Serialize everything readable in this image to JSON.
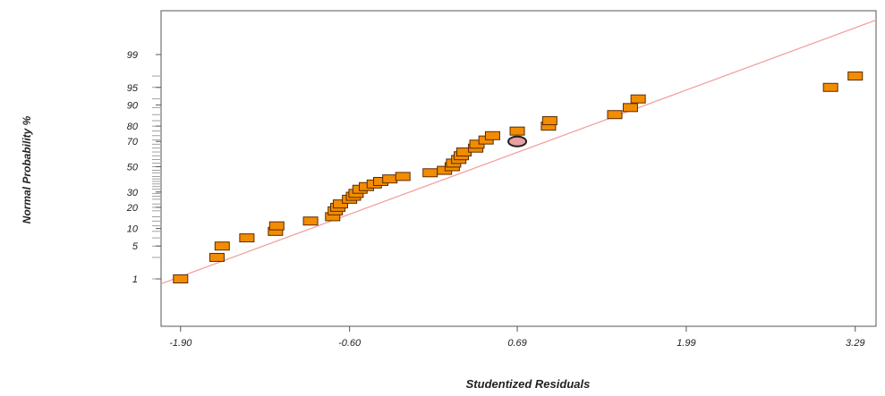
{
  "chart_data": {
    "type": "scatter",
    "title": "",
    "xlabel": "Studentized Residuals",
    "ylabel": "Normal Probability %",
    "xlim": [
      -2.05,
      3.45
    ],
    "x_ticks": [
      -1.9,
      -0.6,
      0.69,
      1.99,
      3.29
    ],
    "x_tick_labels": [
      "-1.90",
      "-0.60",
      "0.69",
      "1.99",
      "3.29"
    ],
    "y_scale": "normal-probability",
    "y_ticks": [
      1,
      5,
      10,
      20,
      30,
      50,
      70,
      80,
      90,
      95,
      99
    ],
    "y_tick_labels": [
      "1",
      "5",
      "10",
      "20",
      "30",
      "50",
      "70",
      "80",
      "90",
      "95",
      "99"
    ],
    "grid": false,
    "marker_color": "#f28c00",
    "marker_edge": "#5a2a00",
    "line_color": "#f4a0a0",
    "highlight_color": "#e8a0a0",
    "reference_line": {
      "x": [
        -2.2,
        3.5
      ],
      "y": [
        0.5,
        99.9
      ]
    },
    "series": [
      {
        "points": [
          {
            "x": -1.9,
            "y": 1
          },
          {
            "x": -1.62,
            "y": 3
          },
          {
            "x": -1.58,
            "y": 5
          },
          {
            "x": -1.39,
            "y": 7
          },
          {
            "x": -1.17,
            "y": 9
          },
          {
            "x": -1.16,
            "y": 11
          },
          {
            "x": -0.9,
            "y": 13
          },
          {
            "x": -0.73,
            "y": 15
          },
          {
            "x": -0.71,
            "y": 18
          },
          {
            "x": -0.69,
            "y": 20
          },
          {
            "x": -0.67,
            "y": 22
          },
          {
            "x": -0.6,
            "y": 25
          },
          {
            "x": -0.57,
            "y": 27
          },
          {
            "x": -0.55,
            "y": 29
          },
          {
            "x": -0.52,
            "y": 32
          },
          {
            "x": -0.47,
            "y": 34
          },
          {
            "x": -0.41,
            "y": 36
          },
          {
            "x": -0.36,
            "y": 38
          },
          {
            "x": -0.29,
            "y": 40
          },
          {
            "x": -0.19,
            "y": 42
          },
          {
            "x": 0.02,
            "y": 45
          },
          {
            "x": 0.13,
            "y": 47
          },
          {
            "x": 0.19,
            "y": 50
          },
          {
            "x": 0.2,
            "y": 53
          },
          {
            "x": 0.24,
            "y": 56
          },
          {
            "x": 0.26,
            "y": 59
          },
          {
            "x": 0.28,
            "y": 62
          },
          {
            "x": 0.37,
            "y": 65
          },
          {
            "x": 0.38,
            "y": 68
          },
          {
            "x": 0.45,
            "y": 71
          },
          {
            "x": 0.5,
            "y": 74
          },
          {
            "x": 0.69,
            "y": 77
          },
          {
            "x": 0.93,
            "y": 80
          },
          {
            "x": 0.94,
            "y": 83
          },
          {
            "x": 1.44,
            "y": 86
          },
          {
            "x": 1.56,
            "y": 89
          },
          {
            "x": 1.62,
            "y": 92
          },
          {
            "x": 3.1,
            "y": 95
          },
          {
            "x": 3.29,
            "y": 97
          }
        ]
      }
    ],
    "highlight_points": [
      {
        "x": 0.69,
        "y": 70
      }
    ]
  }
}
